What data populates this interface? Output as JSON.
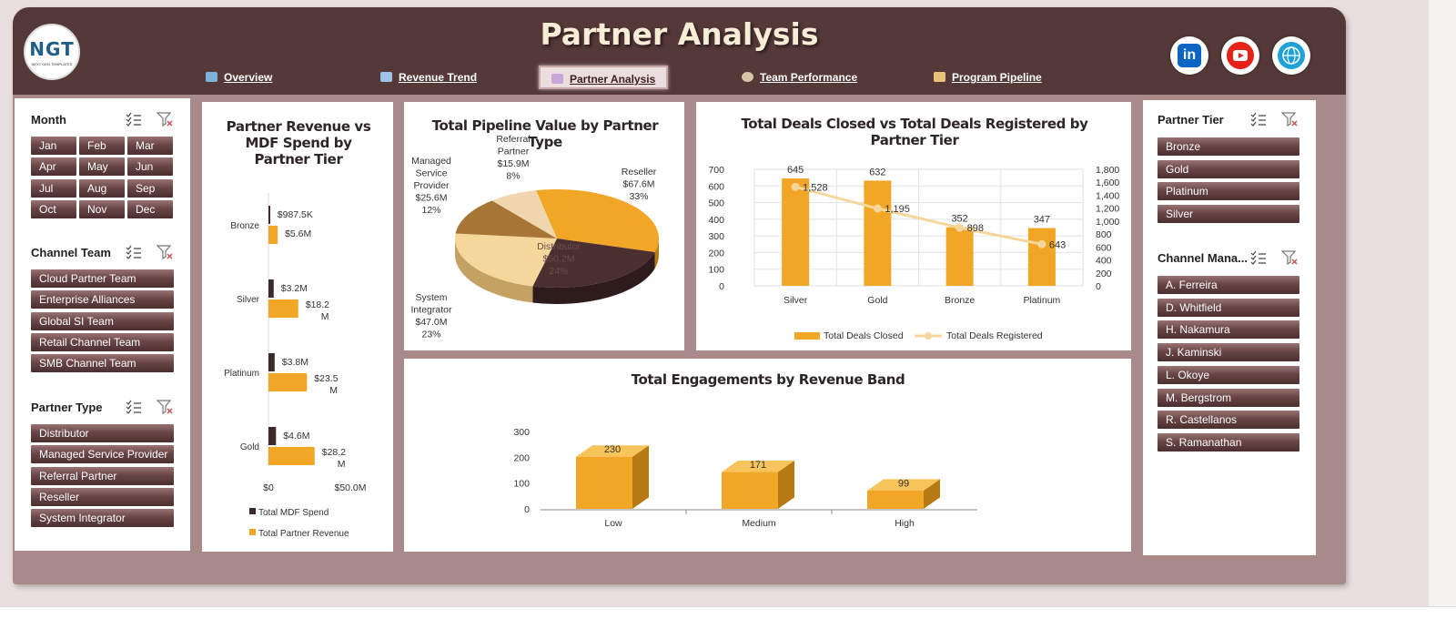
{
  "header": {
    "title": "Partner Analysis",
    "logo_text": "NGT",
    "logo_sub": "NEXT GEN TEMPLATES",
    "nav": [
      "Overview",
      "Revenue Trend",
      "Partner Analysis",
      "Team Performance",
      "Program Pipeline"
    ],
    "active_nav": "Partner Analysis"
  },
  "social": [
    "linkedin-icon",
    "youtube-icon",
    "globe-icon"
  ],
  "colors": {
    "header": "#553838",
    "accent_gold": "#f2a626",
    "dark_brown": "#3d2a2a",
    "light_gold": "#f6d79b",
    "button": "#6a4646"
  },
  "slicers_left": [
    {
      "title": "Month",
      "items": [
        "Jan",
        "Feb",
        "Mar",
        "Apr",
        "May",
        "Jun",
        "Jul",
        "Aug",
        "Sep",
        "Oct",
        "Nov",
        "Dec"
      ]
    },
    {
      "title": "Channel Team",
      "items": [
        "Cloud Partner Team",
        "Enterprise Alliances",
        "Global SI Team",
        "Retail Channel Team",
        "SMB Channel Team"
      ]
    },
    {
      "title": "Partner Type",
      "items": [
        "Distributor",
        "Managed Service Provider",
        "Referral Partner",
        "Reseller",
        "System Integrator"
      ]
    }
  ],
  "slicers_right": [
    {
      "title": "Partner Tier",
      "items": [
        "Bronze",
        "Gold",
        "Platinum",
        "Silver"
      ]
    },
    {
      "title": "Channel Mana...",
      "items": [
        "A. Ferreira",
        "D. Whitfield",
        "H. Nakamura",
        "J. Kaminski",
        "L. Okoye",
        "M. Bergstrom",
        "R. Castellanos",
        "S. Ramanathan"
      ]
    }
  ],
  "chart_data": [
    {
      "type": "bar",
      "orientation": "horizontal",
      "title": "Partner Revenue vs MDF Spend by Partner Tier",
      "categories": [
        "Bronze",
        "Silver",
        "Platinum",
        "Gold"
      ],
      "series": [
        {
          "name": "Total MDF Spend",
          "values": [
            0.9875,
            3.2,
            3.8,
            4.6
          ],
          "labels": [
            "$987.5K",
            "$3.2M",
            "$3.8M",
            "$4.6M"
          ]
        },
        {
          "name": "Total Partner Revenue",
          "values": [
            5.6,
            18.2,
            23.5,
            28.2
          ],
          "labels": [
            "$5.6M",
            "$18.2M",
            "$23.5M",
            "$28.2M"
          ]
        }
      ],
      "x_ticks": [
        "$0",
        "$50.0M"
      ],
      "xlim": [
        0,
        50
      ]
    },
    {
      "type": "pie",
      "title": "Total Pipeline Value by Partner Type",
      "slices": [
        {
          "label": "Reseller",
          "value": 67.6,
          "value_label": "$67.6M",
          "pct": "33%"
        },
        {
          "label": "Distributor",
          "value": 50.2,
          "value_label": "$50.2M",
          "pct": "24%"
        },
        {
          "label": "System Integrator",
          "value": 47.0,
          "value_label": "$47.0M",
          "pct": "23%"
        },
        {
          "label": "Managed Service Provider",
          "value": 25.6,
          "value_label": "$25.6M",
          "pct": "12%"
        },
        {
          "label": "Referral Partner",
          "value": 15.9,
          "value_label": "$15.9M",
          "pct": "8%"
        }
      ]
    },
    {
      "type": "bar",
      "title": "Total Deals Closed vs Total Deals Registered by Partner Tier",
      "categories": [
        "Silver",
        "Gold",
        "Bronze",
        "Platinum"
      ],
      "series": [
        {
          "name": "Total Deals Closed",
          "values": [
            645,
            632,
            352,
            347
          ],
          "axis": "left"
        },
        {
          "name": "Total Deals Registered",
          "values": [
            1528,
            1195,
            898,
            643
          ],
          "labels": [
            "1,528",
            "1,195",
            "898",
            "643"
          ],
          "axis": "right",
          "type": "line"
        }
      ],
      "y_ticks_left": [
        "0",
        "100",
        "200",
        "300",
        "400",
        "500",
        "600",
        "700"
      ],
      "y_ticks_right": [
        "0",
        "200",
        "400",
        "600",
        "800",
        "1,000",
        "1,200",
        "1,400",
        "1,600",
        "1,800"
      ],
      "ylim_left": [
        0,
        700
      ],
      "ylim_right": [
        0,
        1800
      ],
      "legend": "bottom"
    },
    {
      "type": "bar",
      "title": "Total Engagements by Revenue Band",
      "categories": [
        "Low",
        "Medium",
        "High"
      ],
      "values": [
        230,
        171,
        99
      ],
      "y_ticks": [
        "0",
        "100",
        "200",
        "300"
      ],
      "ylim": [
        0,
        300
      ]
    }
  ]
}
